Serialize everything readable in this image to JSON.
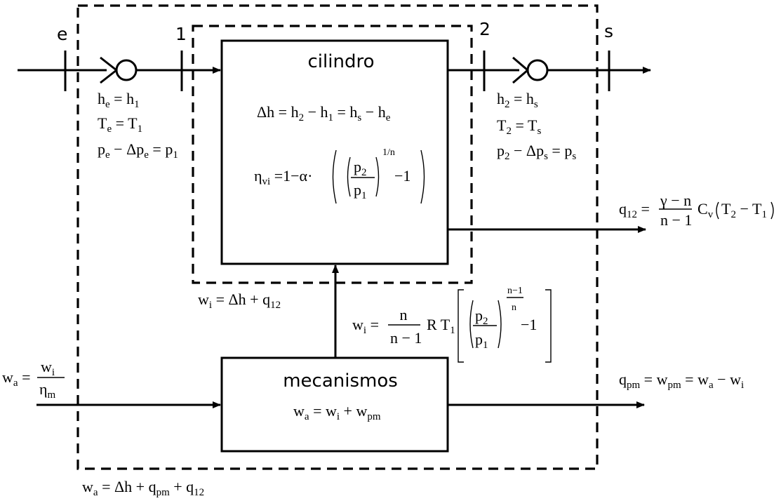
{
  "sections": {
    "e": "e",
    "one": "1",
    "two": "2",
    "s": "s"
  },
  "blocks": {
    "cylinder": "cilindro",
    "mechanisms": "mecanismos"
  },
  "symbols": {
    "h": "h",
    "T": "T",
    "p": "p",
    "q": "q",
    "w": "w",
    "C": "C",
    "R": "R",
    "n": "n",
    "alpha": "α",
    "gamma": "γ",
    "eta": "η",
    "Dh": "Δh",
    "Dp": "Δp",
    "eq": "=",
    "plus": "+",
    "minus": "−",
    "dot": "·",
    "one": "1",
    "two": "2",
    "one_over_n": "1/n"
  },
  "subscripts": {
    "e": "e",
    "one": "1",
    "two": "2",
    "s": "s",
    "vi": "vi",
    "m": "m",
    "i": "i",
    "a": "a",
    "pm": "pm",
    "v": "v",
    "oneTwo": "12"
  },
  "colors": {
    "stroke": "#000000",
    "background": "#ffffff"
  },
  "icons": [
    "inlet-valve-icon",
    "outlet-valve-icon"
  ]
}
